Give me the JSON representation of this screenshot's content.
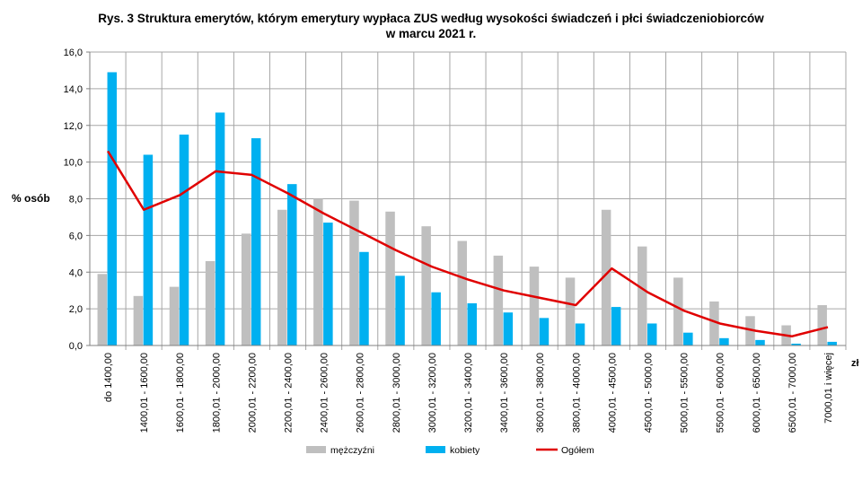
{
  "chart_data": {
    "type": "bar",
    "title": [
      "Rys. 3 Struktura emerytów, którym emerytury wypłaca ZUS według wysokości świadczeń i płci świadczeniobiorców",
      "w marcu 2021 r."
    ],
    "ylabel": "% osób",
    "xlabel": "zł",
    "ylim": [
      0,
      16
    ],
    "yticks": [
      "0,0",
      "2,0",
      "4,0",
      "6,0",
      "8,0",
      "10,0",
      "12,0",
      "14,0",
      "16,0"
    ],
    "ytick_values": [
      0,
      2,
      4,
      6,
      8,
      10,
      12,
      14,
      16
    ],
    "grid": true,
    "legend_position": "bottom",
    "categories": [
      "do 1400,00",
      "1400,01 - 1600,00",
      "1600,01 - 1800,00",
      "1800,01 - 2000,00",
      "2000,01 - 2200,00",
      "2200,01 - 2400,00",
      "2400,01 - 2600,00",
      "2600,01 - 2800,00",
      "2800,01 - 3000,00",
      "3000,01 - 3200,00",
      "3200,01 - 3400,00",
      "3400,01 - 3600,00",
      "3600,01 - 3800,00",
      "3800,01 - 4000,00",
      "4000,01 - 4500,00",
      "4500,01 - 5000,00",
      "5000,01 - 5500,00",
      "5500,01 - 6000,00",
      "6000,01 - 6500,00",
      "6500,01 - 7000,00",
      "7000,01 i więcej"
    ],
    "series": [
      {
        "name": "mężczyźni",
        "type": "bar",
        "color": "#bfbfbf",
        "values": [
          3.9,
          2.7,
          3.2,
          4.6,
          6.1,
          7.4,
          8.0,
          7.9,
          7.3,
          6.5,
          5.7,
          4.9,
          4.3,
          3.7,
          7.4,
          5.4,
          3.7,
          2.4,
          1.6,
          1.1,
          2.2
        ]
      },
      {
        "name": "kobiety",
        "type": "bar",
        "color": "#00b0f0",
        "values": [
          14.9,
          10.4,
          11.5,
          12.7,
          11.3,
          8.8,
          6.7,
          5.1,
          3.8,
          2.9,
          2.3,
          1.8,
          1.5,
          1.2,
          2.1,
          1.2,
          0.7,
          0.4,
          0.3,
          0.1,
          0.2
        ]
      },
      {
        "name": "Ogółem",
        "type": "line",
        "color": "#e00000",
        "values": [
          10.6,
          7.4,
          8.2,
          9.5,
          9.3,
          8.3,
          7.2,
          6.2,
          5.2,
          4.3,
          3.6,
          3.0,
          2.6,
          2.2,
          4.2,
          2.9,
          1.9,
          1.2,
          0.8,
          0.5,
          1.0
        ]
      }
    ]
  }
}
